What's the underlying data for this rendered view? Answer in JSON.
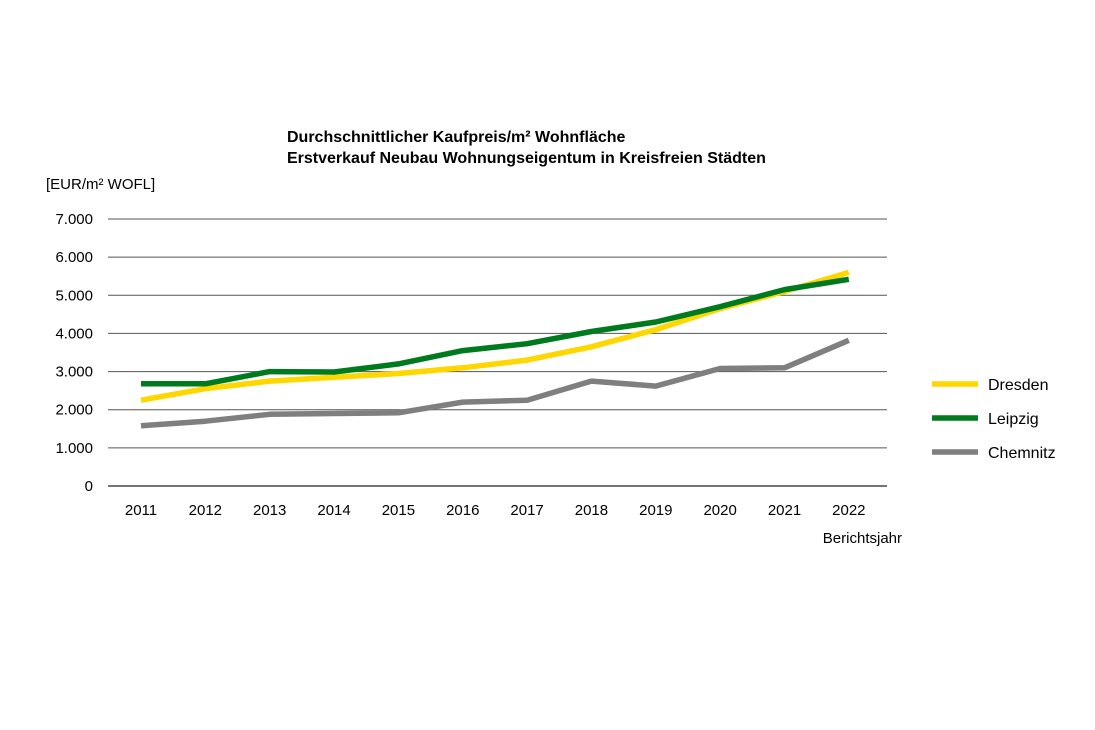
{
  "chart_data": {
    "type": "line",
    "title": "Durchschnittlicher Kaufpreis/m² Wohnfläche",
    "subtitle": "Erstverkauf Neubau Wohnungseigentum in Kreisfreien Städten",
    "ylabel": "[EUR/m²  WOFL]",
    "xlabel": "Berichtsjahr",
    "ylim": [
      0,
      7000
    ],
    "yticks": [
      0,
      1000,
      2000,
      3000,
      4000,
      5000,
      6000,
      7000
    ],
    "ytick_labels": [
      "0",
      "1.000",
      "2.000",
      "3.000",
      "4.000",
      "5.000",
      "6.000",
      "7.000"
    ],
    "x": [
      "2011",
      "2012",
      "2013",
      "2014",
      "2015",
      "2016",
      "2017",
      "2018",
      "2019",
      "2020",
      "2021",
      "2022"
    ],
    "grid": "horizontal",
    "legend_position": "right",
    "series": [
      {
        "name": "Dresden",
        "color": "#ffd700",
        "values": [
          2250,
          2550,
          2750,
          2850,
          2950,
          3100,
          3300,
          3650,
          4100,
          4650,
          5100,
          5600
        ]
      },
      {
        "name": "Leipzig",
        "color": "#007a1e",
        "values": [
          2680,
          2680,
          3000,
          2990,
          3200,
          3550,
          3730,
          4050,
          4300,
          4700,
          5150,
          5420
        ]
      },
      {
        "name": "Chemnitz",
        "color": "#7f7f7f",
        "values": [
          1580,
          1700,
          1880,
          1900,
          1920,
          2200,
          2250,
          2750,
          2620,
          3080,
          3100,
          3820
        ]
      }
    ]
  }
}
